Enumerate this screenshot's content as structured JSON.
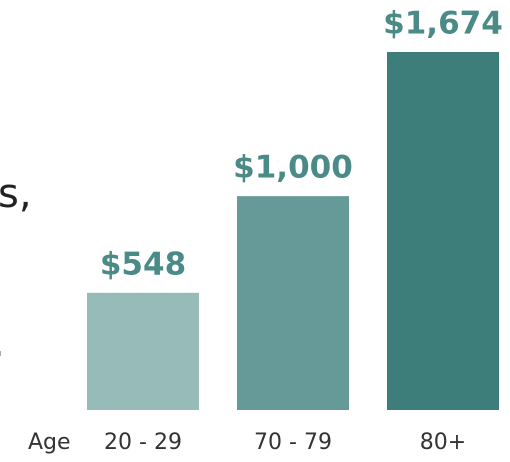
{
  "chart_data": {
    "type": "bar",
    "x_label": "Age",
    "categories": [
      "20 - 29",
      "70 - 79",
      "80+"
    ],
    "values": [
      548,
      1000,
      1674
    ],
    "value_labels": [
      "$548",
      "$1,000",
      "$1,674"
    ],
    "colors": [
      "#96bbb9",
      "#659a98",
      "#3d7d7a"
    ],
    "annotations": [
      "s,",
      "."
    ]
  }
}
